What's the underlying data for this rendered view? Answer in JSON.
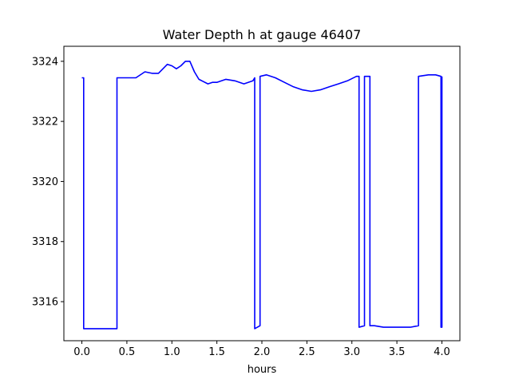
{
  "chart_data": {
    "type": "line",
    "title": "Water Depth h at gauge 46407",
    "xlabel": "hours",
    "ylabel": "",
    "xlim": [
      -0.2,
      4.2
    ],
    "ylim": [
      3314.7,
      3324.5
    ],
    "xticks": [
      0.0,
      0.5,
      1.0,
      1.5,
      2.0,
      2.5,
      3.0,
      3.5,
      4.0
    ],
    "xtick_labels": [
      "0.0",
      "0.5",
      "1.0",
      "1.5",
      "2.0",
      "2.5",
      "3.0",
      "3.5",
      "4.0"
    ],
    "yticks": [
      3316,
      3318,
      3320,
      3322,
      3324
    ],
    "ytick_labels": [
      "3316",
      "3318",
      "3320",
      "3322",
      "3324"
    ],
    "grid": false,
    "series": [
      {
        "color": "#0000ff",
        "x": [
          0.0,
          0.02,
          0.02,
          0.39,
          0.39,
          0.6,
          0.7,
          0.78,
          0.85,
          0.95,
          1.0,
          1.05,
          1.1,
          1.15,
          1.2,
          1.25,
          1.3,
          1.4,
          1.45,
          1.5,
          1.6,
          1.7,
          1.8,
          1.9,
          1.92,
          1.92,
          1.98,
          1.98,
          2.05,
          2.15,
          2.25,
          2.35,
          2.45,
          2.55,
          2.65,
          2.75,
          2.85,
          2.95,
          3.05,
          3.08,
          3.08,
          3.14,
          3.14,
          3.2,
          3.2,
          3.25,
          3.35,
          3.5,
          3.65,
          3.74,
          3.74,
          3.85,
          3.93,
          3.99,
          3.99,
          4.0,
          4.0
        ],
        "y": [
          3323.45,
          3323.45,
          3315.1,
          3315.1,
          3323.45,
          3323.45,
          3323.65,
          3323.6,
          3323.6,
          3323.9,
          3323.85,
          3323.75,
          3323.85,
          3324.0,
          3324.0,
          3323.65,
          3323.4,
          3323.25,
          3323.3,
          3323.3,
          3323.4,
          3323.35,
          3323.25,
          3323.35,
          3323.45,
          3315.1,
          3315.2,
          3323.5,
          3323.55,
          3323.45,
          3323.3,
          3323.15,
          3323.05,
          3323.0,
          3323.05,
          3323.15,
          3323.25,
          3323.35,
          3323.5,
          3323.5,
          3315.15,
          3315.2,
          3323.5,
          3323.5,
          3315.2,
          3315.2,
          3315.15,
          3315.15,
          3315.15,
          3315.2,
          3323.5,
          3323.55,
          3323.55,
          3323.5,
          3315.15,
          3315.15,
          3323.5
        ]
      }
    ]
  }
}
